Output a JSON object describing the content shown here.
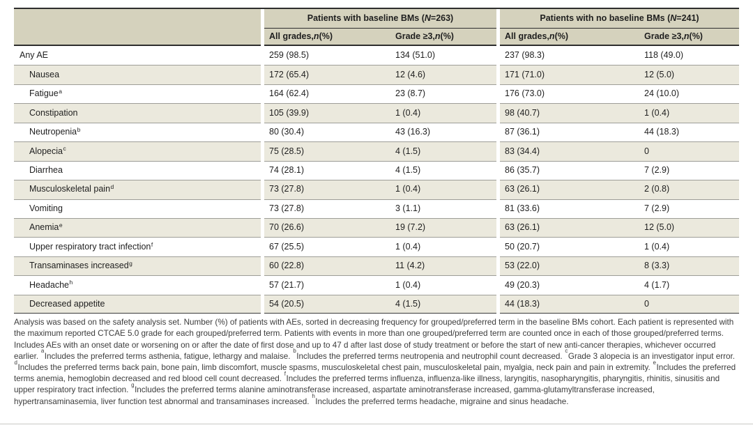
{
  "page": {
    "background": "#ffffff"
  },
  "colors": {
    "header_bg": "#d5d2bd",
    "row_alt_bg": "#ebe9dd",
    "rule_dark": "#2d2d2d",
    "rule_gray": "#9d9d97",
    "footer_rule": "#c9c9c4",
    "text": "#1e1e1e"
  },
  "table": {
    "col_groups": [
      {
        "label": "Patients with baseline BMs (N=263)",
        "subcols": [
          "All grades, n (%)",
          "Grade ≥3, n (%)"
        ]
      },
      {
        "label": "Patients with no baseline BMs (N=241)",
        "subcols": [
          "All grades, n (%)",
          "Grade ≥3, n (%)"
        ]
      }
    ],
    "rows": [
      {
        "term": "Any AE",
        "sup": "",
        "indent": false,
        "values": [
          "259 (98.5)",
          "134 (51.0)",
          "237 (98.3)",
          "118 (49.0)"
        ]
      },
      {
        "term": "Nausea",
        "sup": "",
        "indent": true,
        "values": [
          "172 (65.4)",
          "12 (4.6)",
          "171 (71.0)",
          "12 (5.0)"
        ]
      },
      {
        "term": "Fatigue",
        "sup": "a",
        "indent": true,
        "values": [
          "164 (62.4)",
          "23 (8.7)",
          "176 (73.0)",
          "24 (10.0)"
        ]
      },
      {
        "term": "Constipation",
        "sup": "",
        "indent": true,
        "values": [
          "105 (39.9)",
          "1 (0.4)",
          "98 (40.7)",
          "1 (0.4)"
        ]
      },
      {
        "term": "Neutropenia",
        "sup": "b",
        "indent": true,
        "values": [
          "80 (30.4)",
          "43 (16.3)",
          "87 (36.1)",
          "44 (18.3)"
        ]
      },
      {
        "term": "Alopecia",
        "sup": "c",
        "indent": true,
        "values": [
          "75 (28.5)",
          "4 (1.5)",
          "83 (34.4)",
          "0"
        ]
      },
      {
        "term": "Diarrhea",
        "sup": "",
        "indent": true,
        "values": [
          "74 (28.1)",
          "4 (1.5)",
          "86 (35.7)",
          "7 (2.9)"
        ]
      },
      {
        "term": "Musculoskeletal pain",
        "sup": "d",
        "indent": true,
        "values": [
          "73 (27.8)",
          "1 (0.4)",
          "63 (26.1)",
          "2 (0.8)"
        ]
      },
      {
        "term": "Vomiting",
        "sup": "",
        "indent": true,
        "values": [
          "73 (27.8)",
          "3 (1.1)",
          "81 (33.6)",
          "7 (2.9)"
        ]
      },
      {
        "term": "Anemia",
        "sup": "e",
        "indent": true,
        "values": [
          "70 (26.6)",
          "19 (7.2)",
          "63 (26.1)",
          "12 (5.0)"
        ]
      },
      {
        "term": "Upper respiratory tract infection",
        "sup": "f",
        "indent": true,
        "values": [
          "67 (25.5)",
          "1 (0.4)",
          "50 (20.7)",
          "1 (0.4)"
        ]
      },
      {
        "term": "Transaminases increased",
        "sup": "g",
        "indent": true,
        "values": [
          "60 (22.8)",
          "11 (4.2)",
          "53 (22.0)",
          "8 (3.3)"
        ]
      },
      {
        "term": "Headache",
        "sup": "h",
        "indent": true,
        "values": [
          "57 (21.7)",
          "1 (0.4)",
          "49 (20.3)",
          "4 (1.7)"
        ]
      },
      {
        "term": "Decreased appetite",
        "sup": "",
        "indent": true,
        "values": [
          "54 (20.5)",
          "4 (1.5)",
          "44 (18.3)",
          "0"
        ]
      }
    ]
  },
  "footnotes": {
    "general": "Analysis was based on the safety analysis set. Number (%) of patients with AEs, sorted in decreasing frequency for grouped/preferred term in the baseline BMs cohort. Each patient is represented with the maximum reported CTCAE 5.0 grade for each grouped/preferred term. Patients with events in more than one grouped/preferred term are counted once in each of those grouped/preferred terms. Includes AEs with an onset date or worsening on or after the date of first dose and up to 47 d after last dose of study treatment or before the start of new anti-cancer therapies, whichever occurred earlier.",
    "lettered": [
      {
        "mark": "a",
        "text": "Includes the preferred terms asthenia, fatigue, lethargy and malaise."
      },
      {
        "mark": "b",
        "text": "Includes the preferred terms neutropenia and neutrophil count decreased."
      },
      {
        "mark": "c",
        "text": "Grade 3 alopecia is an investigator input error."
      },
      {
        "mark": "d",
        "text": "Includes the preferred terms back pain, bone pain, limb discomfort, muscle spasms, musculoskeletal chest pain, musculoskeletal pain, myalgia, neck pain and pain in extremity."
      },
      {
        "mark": "e",
        "text": "Includes the preferred terms anemia, hemoglobin decreased and red blood cell count decreased."
      },
      {
        "mark": "f",
        "text": "Includes the preferred terms influenza, influenza-like illness, laryngitis, nasopharyngitis, pharyngitis, rhinitis, sinusitis and upper respiratory tract infection."
      },
      {
        "mark": "g",
        "text": "Includes the preferred terms alanine aminotransferase increased, aspartate aminotransferase increased, gamma-glutamyltransferase increased, hypertransaminasemia, liver function test abnormal and transaminases increased."
      },
      {
        "mark": "h",
        "text": "Includes the preferred terms headache, migraine and sinus headache."
      }
    ]
  }
}
